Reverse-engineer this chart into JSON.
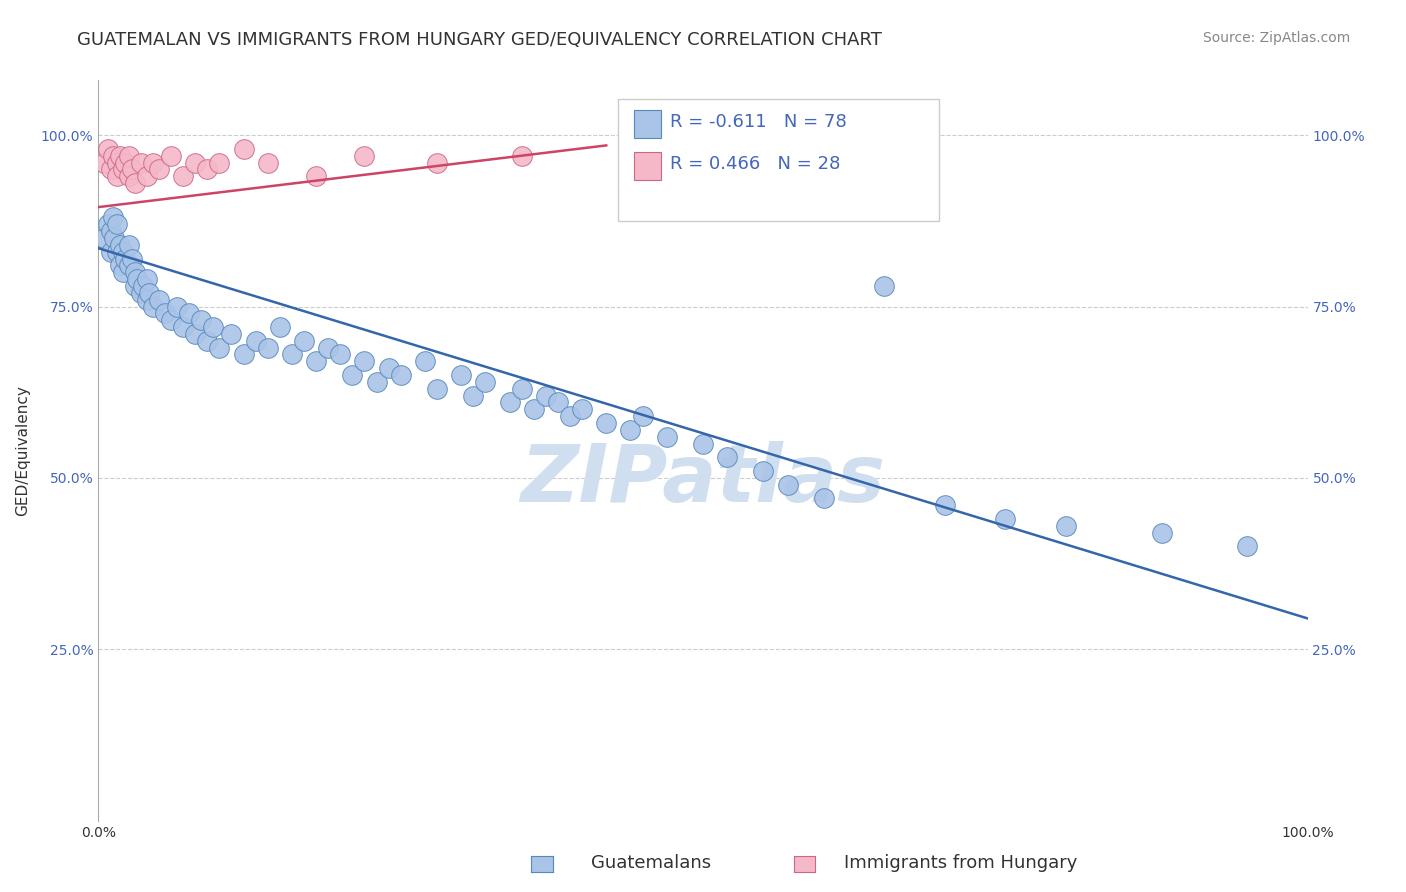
{
  "title": "GUATEMALAN VS IMMIGRANTS FROM HUNGARY GED/EQUIVALENCY CORRELATION CHART",
  "source": "Source: ZipAtlas.com",
  "ylabel": "GED/Equivalency",
  "legend_label1": "Guatemalans",
  "legend_label2": "Immigrants from Hungary",
  "r_blue": "-0.611",
  "n_blue": "78",
  "r_pink": "0.466",
  "n_pink": "28",
  "xlim": [
    0.0,
    1.0
  ],
  "ylim": [
    0.0,
    1.08
  ],
  "yticks": [
    0.25,
    0.5,
    0.75,
    1.0
  ],
  "ytick_labels": [
    "25.0%",
    "50.0%",
    "75.0%",
    "100.0%"
  ],
  "xtick_labels": [
    "0.0%",
    "100.0%"
  ],
  "background_color": "#ffffff",
  "grid_color": "#cccccc",
  "blue_scatter_color": "#aac4e8",
  "blue_scatter_edge": "#5588bb",
  "pink_scatter_color": "#f5b8c8",
  "pink_scatter_edge": "#cc6688",
  "blue_line_color": "#3366aa",
  "pink_line_color": "#cc4466",
  "watermark_color": "#c8d8e8",
  "title_color": "#333333",
  "source_color": "#888888",
  "tick_color": "#4466bb",
  "title_fontsize": 13,
  "source_fontsize": 10,
  "axis_label_fontsize": 11,
  "tick_fontsize": 10,
  "legend_fontsize": 13,
  "blue_line_x": [
    0.0,
    1.0
  ],
  "blue_line_y": [
    0.835,
    0.295
  ],
  "pink_line_x": [
    0.0,
    0.42
  ],
  "pink_line_y": [
    0.895,
    0.985
  ],
  "blue_points_x": [
    0.005,
    0.008,
    0.01,
    0.01,
    0.012,
    0.013,
    0.015,
    0.015,
    0.018,
    0.018,
    0.02,
    0.02,
    0.022,
    0.025,
    0.025,
    0.028,
    0.03,
    0.03,
    0.032,
    0.035,
    0.037,
    0.04,
    0.04,
    0.042,
    0.045,
    0.05,
    0.055,
    0.06,
    0.065,
    0.07,
    0.075,
    0.08,
    0.085,
    0.09,
    0.095,
    0.1,
    0.11,
    0.12,
    0.13,
    0.14,
    0.15,
    0.16,
    0.17,
    0.18,
    0.19,
    0.2,
    0.21,
    0.22,
    0.23,
    0.24,
    0.25,
    0.27,
    0.28,
    0.3,
    0.31,
    0.32,
    0.34,
    0.35,
    0.36,
    0.37,
    0.38,
    0.39,
    0.4,
    0.42,
    0.44,
    0.45,
    0.47,
    0.5,
    0.52,
    0.55,
    0.57,
    0.6,
    0.65,
    0.7,
    0.75,
    0.8,
    0.88,
    0.95
  ],
  "blue_points_y": [
    0.85,
    0.87,
    0.86,
    0.83,
    0.88,
    0.85,
    0.87,
    0.83,
    0.84,
    0.81,
    0.83,
    0.8,
    0.82,
    0.84,
    0.81,
    0.82,
    0.8,
    0.78,
    0.79,
    0.77,
    0.78,
    0.76,
    0.79,
    0.77,
    0.75,
    0.76,
    0.74,
    0.73,
    0.75,
    0.72,
    0.74,
    0.71,
    0.73,
    0.7,
    0.72,
    0.69,
    0.71,
    0.68,
    0.7,
    0.69,
    0.72,
    0.68,
    0.7,
    0.67,
    0.69,
    0.68,
    0.65,
    0.67,
    0.64,
    0.66,
    0.65,
    0.67,
    0.63,
    0.65,
    0.62,
    0.64,
    0.61,
    0.63,
    0.6,
    0.62,
    0.61,
    0.59,
    0.6,
    0.58,
    0.57,
    0.59,
    0.56,
    0.55,
    0.53,
    0.51,
    0.49,
    0.47,
    0.78,
    0.46,
    0.44,
    0.43,
    0.42,
    0.4
  ],
  "pink_points_x": [
    0.005,
    0.008,
    0.01,
    0.012,
    0.015,
    0.015,
    0.018,
    0.02,
    0.022,
    0.025,
    0.025,
    0.028,
    0.03,
    0.035,
    0.04,
    0.045,
    0.05,
    0.06,
    0.07,
    0.08,
    0.09,
    0.1,
    0.12,
    0.14,
    0.18,
    0.22,
    0.28,
    0.35
  ],
  "pink_points_y": [
    0.96,
    0.98,
    0.95,
    0.97,
    0.96,
    0.94,
    0.97,
    0.95,
    0.96,
    0.94,
    0.97,
    0.95,
    0.93,
    0.96,
    0.94,
    0.96,
    0.95,
    0.97,
    0.94,
    0.96,
    0.95,
    0.96,
    0.98,
    0.96,
    0.94,
    0.97,
    0.96,
    0.97
  ]
}
